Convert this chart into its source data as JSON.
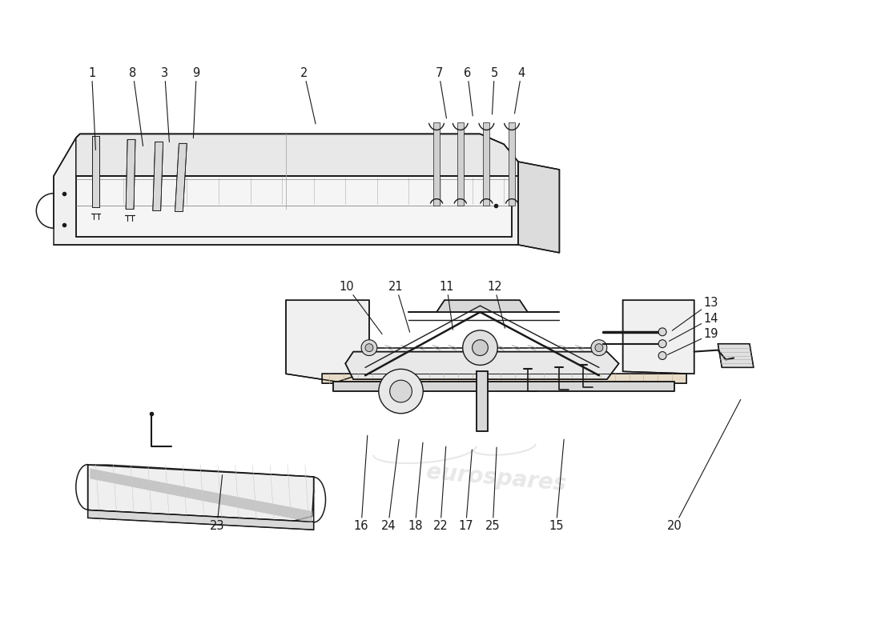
{
  "background_color": "#ffffff",
  "line_color": "#1a1a1a",
  "text_color": "#1a1a1a",
  "fill_light": "#f8f8f8",
  "fill_mid": "#eeeeee",
  "fill_dark": "#e0e0e0",
  "watermark_text1": "eurospares",
  "watermark_text2": "eurospares",
  "wm_color": "#cccccc",
  "wm_alpha": 0.45,
  "font_size_label": 10.5,
  "top_labels": [
    [
      "1",
      110,
      88,
      115,
      188
    ],
    [
      "8",
      162,
      88,
      175,
      183
    ],
    [
      "3",
      202,
      88,
      208,
      178
    ],
    [
      "9",
      242,
      88,
      238,
      173
    ],
    [
      "2",
      378,
      88,
      393,
      155
    ],
    [
      "7",
      548,
      88,
      558,
      148
    ],
    [
      "6",
      584,
      88,
      591,
      145
    ],
    [
      "5",
      618,
      88,
      615,
      143
    ],
    [
      "4",
      652,
      88,
      643,
      142
    ]
  ],
  "mid_labels": [
    [
      "10",
      432,
      358,
      478,
      420
    ],
    [
      "21",
      494,
      358,
      512,
      418
    ],
    [
      "11",
      558,
      358,
      566,
      415
    ],
    [
      "12",
      618,
      358,
      632,
      413
    ],
    [
      "13",
      882,
      378,
      840,
      415
    ],
    [
      "14",
      882,
      398,
      836,
      428
    ],
    [
      "19",
      882,
      418,
      834,
      445
    ]
  ],
  "bot_labels": [
    [
      "23",
      268,
      660,
      275,
      593
    ],
    [
      "16",
      450,
      660,
      458,
      543
    ],
    [
      "24",
      484,
      660,
      498,
      548
    ],
    [
      "18",
      518,
      660,
      528,
      552
    ],
    [
      "22",
      550,
      660,
      557,
      557
    ],
    [
      "17",
      582,
      660,
      590,
      561
    ],
    [
      "25",
      616,
      660,
      621,
      558
    ],
    [
      "15",
      696,
      660,
      706,
      548
    ],
    [
      "20",
      836,
      660,
      930,
      498
    ]
  ]
}
